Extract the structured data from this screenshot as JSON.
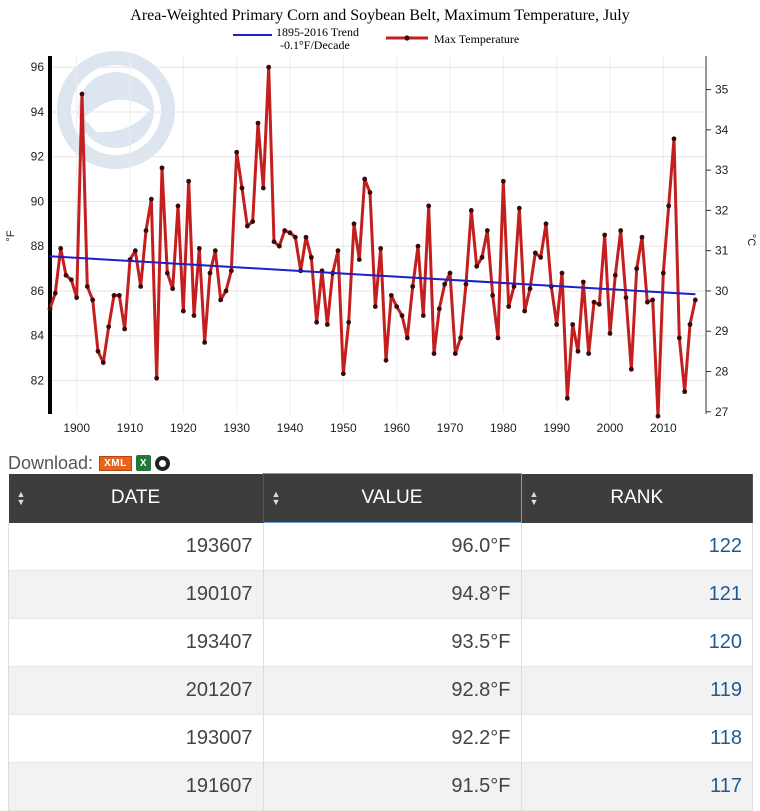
{
  "chart_data": {
    "type": "line",
    "title": "Area-Weighted Primary Corn and Soybean Belt, Maximum Temperature, July",
    "legend": [
      {
        "label": "1895-2016 Trend",
        "label2": "-0.1°F/Decade",
        "color": "#1f1fc8"
      },
      {
        "label": "Max Temperature",
        "color": "#c41e1e"
      }
    ],
    "ylabel_left": "°F",
    "ylabel_right": "°C",
    "ylim": [
      80.5,
      96.5
    ],
    "y_ticks": [
      82,
      84,
      86,
      88,
      90,
      92,
      94,
      96
    ],
    "y_right_ticks": [
      27,
      28,
      29,
      30,
      31,
      32,
      33,
      34,
      35
    ],
    "xlim": [
      1895,
      2018
    ],
    "x_ticks": [
      1900,
      1910,
      1920,
      1930,
      1940,
      1950,
      1960,
      1970,
      1980,
      1990,
      2000,
      2010
    ],
    "series": [
      {
        "name": "Max Temperature",
        "x": [
          1895,
          1896,
          1897,
          1898,
          1899,
          1900,
          1901,
          1902,
          1903,
          1904,
          1905,
          1906,
          1907,
          1908,
          1909,
          1910,
          1911,
          1912,
          1913,
          1914,
          1915,
          1916,
          1917,
          1918,
          1919,
          1920,
          1921,
          1922,
          1923,
          1924,
          1925,
          1926,
          1927,
          1928,
          1929,
          1930,
          1931,
          1932,
          1933,
          1934,
          1935,
          1936,
          1937,
          1938,
          1939,
          1940,
          1941,
          1942,
          1943,
          1944,
          1945,
          1946,
          1947,
          1948,
          1949,
          1950,
          1951,
          1952,
          1953,
          1954,
          1955,
          1956,
          1957,
          1958,
          1959,
          1960,
          1961,
          1962,
          1963,
          1964,
          1965,
          1966,
          1967,
          1968,
          1969,
          1970,
          1971,
          1972,
          1973,
          1974,
          1975,
          1976,
          1977,
          1978,
          1979,
          1980,
          1981,
          1982,
          1983,
          1984,
          1985,
          1986,
          1987,
          1988,
          1989,
          1990,
          1991,
          1992,
          1993,
          1994,
          1995,
          1996,
          1997,
          1998,
          1999,
          2000,
          2001,
          2002,
          2003,
          2004,
          2005,
          2006,
          2007,
          2008,
          2009,
          2010,
          2011,
          2012,
          2013,
          2014,
          2015,
          2016
        ],
        "values": [
          85.2,
          85.9,
          87.9,
          86.7,
          86.5,
          85.7,
          94.8,
          86.2,
          85.6,
          83.3,
          82.8,
          84.4,
          85.8,
          85.8,
          84.3,
          87.4,
          87.8,
          86.2,
          88.7,
          90.1,
          82.1,
          91.5,
          86.8,
          86.1,
          89.8,
          85.1,
          90.9,
          84.9,
          87.9,
          83.7,
          86.8,
          87.8,
          85.6,
          86.0,
          86.9,
          92.2,
          90.6,
          88.9,
          89.1,
          93.5,
          90.6,
          96.0,
          88.2,
          88.0,
          88.7,
          88.6,
          88.4,
          86.9,
          88.4,
          87.5,
          84.6,
          86.9,
          84.5,
          86.8,
          87.8,
          82.3,
          84.6,
          89.0,
          87.4,
          91.0,
          90.4,
          85.3,
          87.9,
          82.9,
          85.8,
          85.3,
          84.9,
          83.9,
          86.2,
          88.0,
          84.9,
          89.8,
          83.2,
          85.2,
          86.3,
          86.8,
          83.2,
          83.9,
          86.3,
          89.6,
          87.1,
          87.5,
          88.7,
          85.8,
          83.9,
          90.9,
          85.3,
          86.2,
          89.7,
          85.1,
          86.1,
          87.7,
          87.5,
          89.0,
          86.2,
          84.5,
          86.8,
          81.2,
          84.5,
          83.3,
          86.4,
          83.2,
          85.5,
          85.4,
          88.5,
          84.1,
          86.7,
          88.7,
          85.7,
          82.5,
          87.0,
          88.4,
          85.5,
          85.6,
          80.4,
          86.8,
          89.8,
          92.8,
          83.9,
          81.5,
          84.5,
          85.6
        ]
      },
      {
        "name": "1895-2016 Trend",
        "x": [
          1895,
          2016
        ],
        "values": [
          87.55,
          85.85
        ]
      }
    ]
  },
  "download": {
    "label": "Download:",
    "xml": "XML",
    "csv": "X"
  },
  "table": {
    "headers": [
      "DATE",
      "VALUE",
      "RANK"
    ],
    "rows": [
      {
        "date": "193607",
        "value": "96.0°F",
        "rank": "122"
      },
      {
        "date": "190107",
        "value": "94.8°F",
        "rank": "121"
      },
      {
        "date": "193407",
        "value": "93.5°F",
        "rank": "120"
      },
      {
        "date": "201207",
        "value": "92.8°F",
        "rank": "119"
      },
      {
        "date": "193007",
        "value": "92.2°F",
        "rank": "118"
      },
      {
        "date": "191607",
        "value": "91.5°F",
        "rank": "117"
      }
    ]
  }
}
